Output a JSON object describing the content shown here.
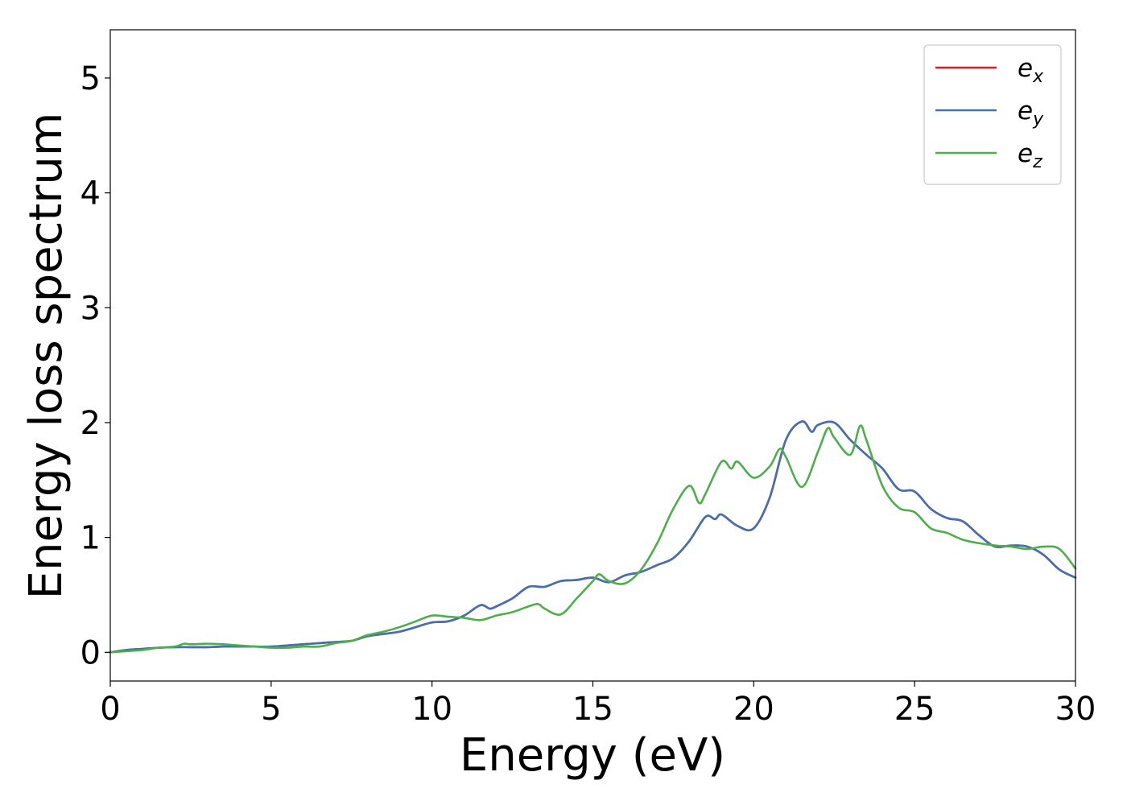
{
  "chart_data": {
    "type": "line",
    "title": "",
    "xlabel": "Energy (eV)",
    "ylabel": "Energy loss spectrum",
    "xlim": [
      0,
      30
    ],
    "ylim": [
      -0.25,
      5.42
    ],
    "xticks": [
      0,
      5,
      10,
      15,
      20,
      25,
      30
    ],
    "yticks": [
      0,
      1,
      2,
      3,
      4,
      5
    ],
    "grid": false,
    "legend_position": "top-right",
    "series": [
      {
        "name": "e_x",
        "label_main": "e",
        "label_sub": "x",
        "color": "#e41a1c",
        "x": [
          0,
          0.5,
          1,
          1.5,
          2,
          2.5,
          3,
          3.5,
          4,
          4.5,
          5,
          5.5,
          6,
          6.5,
          7,
          7.5,
          8,
          8.5,
          9,
          9.5,
          10,
          10.5,
          11,
          11.5,
          11.8,
          12,
          12.5,
          13,
          13.5,
          14,
          14.5,
          15,
          15.5,
          16,
          16.5,
          17,
          17.5,
          18,
          18.5,
          18.8,
          19,
          19.5,
          20,
          20.5,
          21,
          21.5,
          21.8,
          22,
          22.5,
          23,
          23.5,
          24,
          24.5,
          25,
          25.5,
          26,
          26.5,
          27,
          27.5,
          28,
          28.5,
          29,
          29.5,
          30
        ],
        "y": [
          0,
          0.02,
          0.03,
          0.04,
          0.045,
          0.045,
          0.045,
          0.05,
          0.05,
          0.05,
          0.05,
          0.06,
          0.07,
          0.08,
          0.09,
          0.1,
          0.14,
          0.16,
          0.18,
          0.22,
          0.26,
          0.27,
          0.32,
          0.41,
          0.38,
          0.4,
          0.47,
          0.57,
          0.57,
          0.62,
          0.63,
          0.65,
          0.61,
          0.67,
          0.7,
          0.76,
          0.82,
          0.97,
          1.18,
          1.16,
          1.2,
          1.1,
          1.08,
          1.35,
          1.85,
          2.01,
          1.92,
          1.98,
          2.0,
          1.85,
          1.72,
          1.6,
          1.42,
          1.4,
          1.25,
          1.17,
          1.14,
          1.02,
          0.92,
          0.93,
          0.92,
          0.85,
          0.72,
          0.65
        ]
      },
      {
        "name": "e_y",
        "label_main": "e",
        "label_sub": "y",
        "color": "#4271b0",
        "x": [
          0,
          0.5,
          1,
          1.5,
          2,
          2.5,
          3,
          3.5,
          4,
          4.5,
          5,
          5.5,
          6,
          6.5,
          7,
          7.5,
          8,
          8.5,
          9,
          9.5,
          10,
          10.5,
          11,
          11.5,
          11.8,
          12,
          12.5,
          13,
          13.5,
          14,
          14.5,
          15,
          15.5,
          16,
          16.5,
          17,
          17.5,
          18,
          18.5,
          18.8,
          19,
          19.5,
          20,
          20.5,
          21,
          21.5,
          21.8,
          22,
          22.5,
          23,
          23.5,
          24,
          24.5,
          25,
          25.5,
          26,
          26.5,
          27,
          27.5,
          28,
          28.5,
          29,
          29.5,
          30
        ],
        "y": [
          0,
          0.02,
          0.03,
          0.04,
          0.045,
          0.045,
          0.045,
          0.05,
          0.05,
          0.05,
          0.05,
          0.06,
          0.07,
          0.08,
          0.09,
          0.1,
          0.14,
          0.16,
          0.18,
          0.22,
          0.26,
          0.27,
          0.32,
          0.41,
          0.38,
          0.4,
          0.47,
          0.57,
          0.57,
          0.62,
          0.63,
          0.65,
          0.61,
          0.67,
          0.7,
          0.76,
          0.82,
          0.97,
          1.18,
          1.16,
          1.2,
          1.1,
          1.08,
          1.35,
          1.85,
          2.01,
          1.92,
          1.98,
          2.0,
          1.85,
          1.72,
          1.6,
          1.42,
          1.4,
          1.25,
          1.17,
          1.14,
          1.02,
          0.92,
          0.93,
          0.92,
          0.85,
          0.72,
          0.65
        ]
      },
      {
        "name": "e_z",
        "label_main": "e",
        "label_sub": "z",
        "color": "#4daf4a",
        "x": [
          0,
          0.5,
          1,
          1.5,
          2,
          2.3,
          2.5,
          3,
          3.5,
          4,
          4.5,
          5,
          5.5,
          6,
          6.5,
          7,
          7.5,
          8,
          8.5,
          9,
          9.5,
          10,
          10.5,
          11,
          11.5,
          12,
          12.5,
          13,
          13.3,
          13.5,
          14,
          14.5,
          15,
          15.2,
          15.5,
          16,
          16.5,
          17,
          17.5,
          18,
          18.3,
          18.5,
          19,
          19.3,
          19.5,
          20,
          20.5,
          20.8,
          21,
          21.5,
          22,
          22.3,
          22.5,
          23,
          23.3,
          23.5,
          24,
          24.5,
          25,
          25.5,
          26,
          26.5,
          27,
          27.5,
          28,
          28.5,
          29,
          29.5,
          30
        ],
        "y": [
          0,
          0.01,
          0.02,
          0.04,
          0.05,
          0.075,
          0.07,
          0.075,
          0.07,
          0.06,
          0.05,
          0.04,
          0.04,
          0.05,
          0.05,
          0.08,
          0.1,
          0.15,
          0.18,
          0.22,
          0.27,
          0.32,
          0.31,
          0.3,
          0.28,
          0.32,
          0.35,
          0.4,
          0.42,
          0.38,
          0.33,
          0.47,
          0.62,
          0.68,
          0.62,
          0.6,
          0.72,
          0.95,
          1.25,
          1.45,
          1.3,
          1.38,
          1.66,
          1.6,
          1.66,
          1.52,
          1.62,
          1.77,
          1.7,
          1.44,
          1.75,
          1.95,
          1.87,
          1.72,
          1.97,
          1.85,
          1.45,
          1.26,
          1.22,
          1.08,
          1.04,
          0.98,
          0.95,
          0.93,
          0.92,
          0.9,
          0.92,
          0.9,
          0.73
        ]
      }
    ]
  }
}
